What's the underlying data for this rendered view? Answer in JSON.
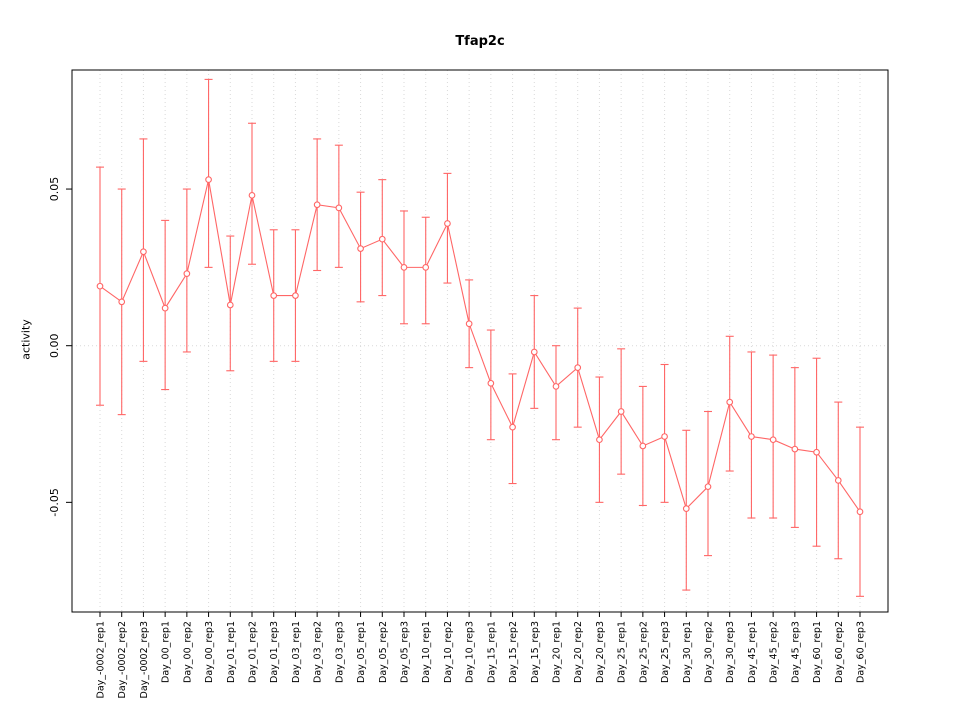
{
  "chart_data": {
    "type": "scatter",
    "title": "Tfap2c",
    "xlabel": "",
    "ylabel": "activity",
    "legend": "none",
    "grid": true,
    "grid_color": "#d9d9d9",
    "series_color": "#ff6666",
    "axis_color": "#000000",
    "point_style": "open-circle",
    "error_bars": true,
    "ylim": [
      -0.085,
      0.088
    ],
    "yticks": [
      -0.05,
      0,
      0.05
    ],
    "ytick_labels": [
      "-0.05",
      "0.00",
      "0.05"
    ],
    "categories": [
      "Day_-0002_rep1",
      "Day_-0002_rep2",
      "Day_-0002_rep3",
      "Day_00_rep1",
      "Day_00_rep2",
      "Day_00_rep3",
      "Day_01_rep1",
      "Day_01_rep2",
      "Day_01_rep3",
      "Day_03_rep1",
      "Day_03_rep2",
      "Day_03_rep3",
      "Day_05_rep1",
      "Day_05_rep2",
      "Day_05_rep3",
      "Day_10_rep1",
      "Day_10_rep2",
      "Day_10_rep3",
      "Day_15_rep1",
      "Day_15_rep2",
      "Day_15_rep3",
      "Day_20_rep1",
      "Day_20_rep2",
      "Day_20_rep3",
      "Day_25_rep1",
      "Day_25_rep2",
      "Day_25_rep3",
      "Day_30_rep1",
      "Day_30_rep2",
      "Day_30_rep3",
      "Day_45_rep1",
      "Day_45_rep2",
      "Day_45_rep3",
      "Day_60_rep1",
      "Day_60_rep2",
      "Day_60_rep3"
    ],
    "series": [
      {
        "name": "activity",
        "means": [
          0.019,
          0.014,
          0.03,
          0.012,
          0.023,
          0.053,
          0.013,
          0.048,
          0.016,
          0.016,
          0.045,
          0.044,
          0.031,
          0.034,
          0.025,
          0.025,
          0.039,
          0.007,
          -0.012,
          -0.026,
          -0.002,
          -0.013,
          -0.007,
          -0.03,
          -0.021,
          -0.032,
          -0.029,
          -0.052,
          -0.045,
          -0.018,
          -0.029,
          -0.03,
          -0.033,
          -0.034,
          -0.043,
          -0.053
        ],
        "upper": [
          0.057,
          0.05,
          0.066,
          0.04,
          0.05,
          0.085,
          0.035,
          0.071,
          0.037,
          0.037,
          0.066,
          0.064,
          0.049,
          0.053,
          0.043,
          0.041,
          0.055,
          0.021,
          0.005,
          -0.009,
          0.016,
          0.0,
          0.012,
          -0.01,
          -0.001,
          -0.013,
          -0.006,
          -0.027,
          -0.021,
          0.003,
          -0.002,
          -0.003,
          -0.007,
          -0.004,
          -0.018,
          -0.026
        ],
        "lower": [
          -0.019,
          -0.022,
          -0.005,
          -0.014,
          -0.002,
          0.025,
          -0.008,
          0.026,
          -0.005,
          -0.005,
          0.024,
          0.025,
          0.014,
          0.016,
          0.007,
          0.007,
          0.02,
          -0.007,
          -0.03,
          -0.044,
          -0.02,
          -0.03,
          -0.026,
          -0.05,
          -0.041,
          -0.051,
          -0.05,
          -0.078,
          -0.067,
          -0.04,
          -0.055,
          -0.055,
          -0.058,
          -0.064,
          -0.068,
          -0.08
        ]
      }
    ]
  }
}
